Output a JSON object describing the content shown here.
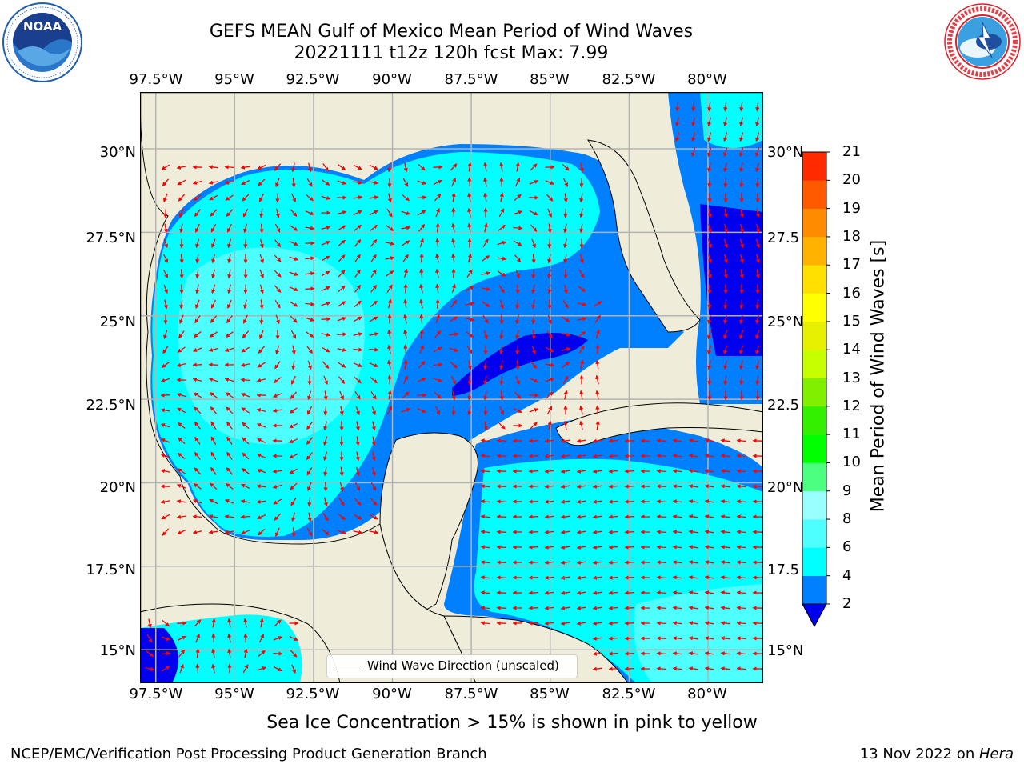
{
  "title_line1": "GEFS MEAN Gulf of Mexico Mean Period of Wind Waves",
  "title_line2": "20221111 t12z 120h fcst   Max: 7.99",
  "logos": {
    "left": {
      "name": "noaa-logo",
      "text": "NOAA",
      "ring_text": "NATIONAL OCEANIC AND ATMOSPHERIC ADMINISTRATION · U.S. DEPARTMENT OF COMMERCE",
      "color": "#1f5fae"
    },
    "right": {
      "name": "nws-logo",
      "ring_text": "NATIONAL WEATHER SERVICE",
      "color": "#e0202a"
    }
  },
  "map": {
    "lon_ticks_top": [
      "97.5°W",
      "95°W",
      "92.5°W",
      "90°W",
      "87.5°W",
      "85°W",
      "82.5°W",
      "80°W"
    ],
    "lon_ticks_bottom": [
      "97.5°W",
      "95°W",
      "92.5°W",
      "90°W",
      "87.5°W",
      "85°W",
      "82.5°W",
      "80°W"
    ],
    "lat_ticks_left": [
      "30°N",
      "27.5°N",
      "25°N",
      "22.5°N",
      "20°N",
      "17.5°N",
      "15°N"
    ],
    "lat_ticks_right": [
      "30°N",
      "27.5",
      "25°N",
      "22.5",
      "20°N",
      "17.5",
      "15°N"
    ],
    "lon_values": [
      -97.5,
      -95,
      -92.5,
      -90,
      -87.5,
      -85,
      -82.5,
      -80
    ],
    "lat_values": [
      30,
      27.5,
      25,
      22.5,
      20,
      17.5,
      15
    ],
    "extent": {
      "lon_min": -98,
      "lon_max": -78.25,
      "lat_min": 14,
      "lat_max": 31.7
    },
    "land_color": "#efedd9",
    "grid_color": "#b3b3b3",
    "arrow_color": "#ff0000",
    "legend_label": "Wind Wave Direction (unscaled)"
  },
  "colorbar": {
    "label": "Mean Period of Wind Waves [s]",
    "ticks": [
      "21",
      "20",
      "19",
      "18",
      "17",
      "16",
      "15",
      "14",
      "13",
      "12",
      "11",
      "10",
      "9",
      "8",
      "6",
      "4",
      "2"
    ],
    "levels": [
      2,
      4,
      6,
      8,
      9,
      10,
      11,
      12,
      13,
      14,
      15,
      16,
      17,
      18,
      19,
      20,
      21
    ],
    "colors": [
      "#0080ff",
      "#00ffff",
      "#4dffff",
      "#99ffff",
      "#4dff80",
      "#00ff00",
      "#33f000",
      "#80f000",
      "#c8ff00",
      "#e6f000",
      "#ffff00",
      "#ffe000",
      "#ffb300",
      "#ff8c00",
      "#ff5a00",
      "#ff2a00"
    ],
    "under_color": "#0000ee"
  },
  "caption": "Sea Ice Concentration > 15% is shown in pink to yellow",
  "footer_left": "NCEP/EMC/Verification Post Processing Product Generation Branch",
  "footer_right_prefix": "13 Nov 2022 on ",
  "footer_right_host": "Hera"
}
